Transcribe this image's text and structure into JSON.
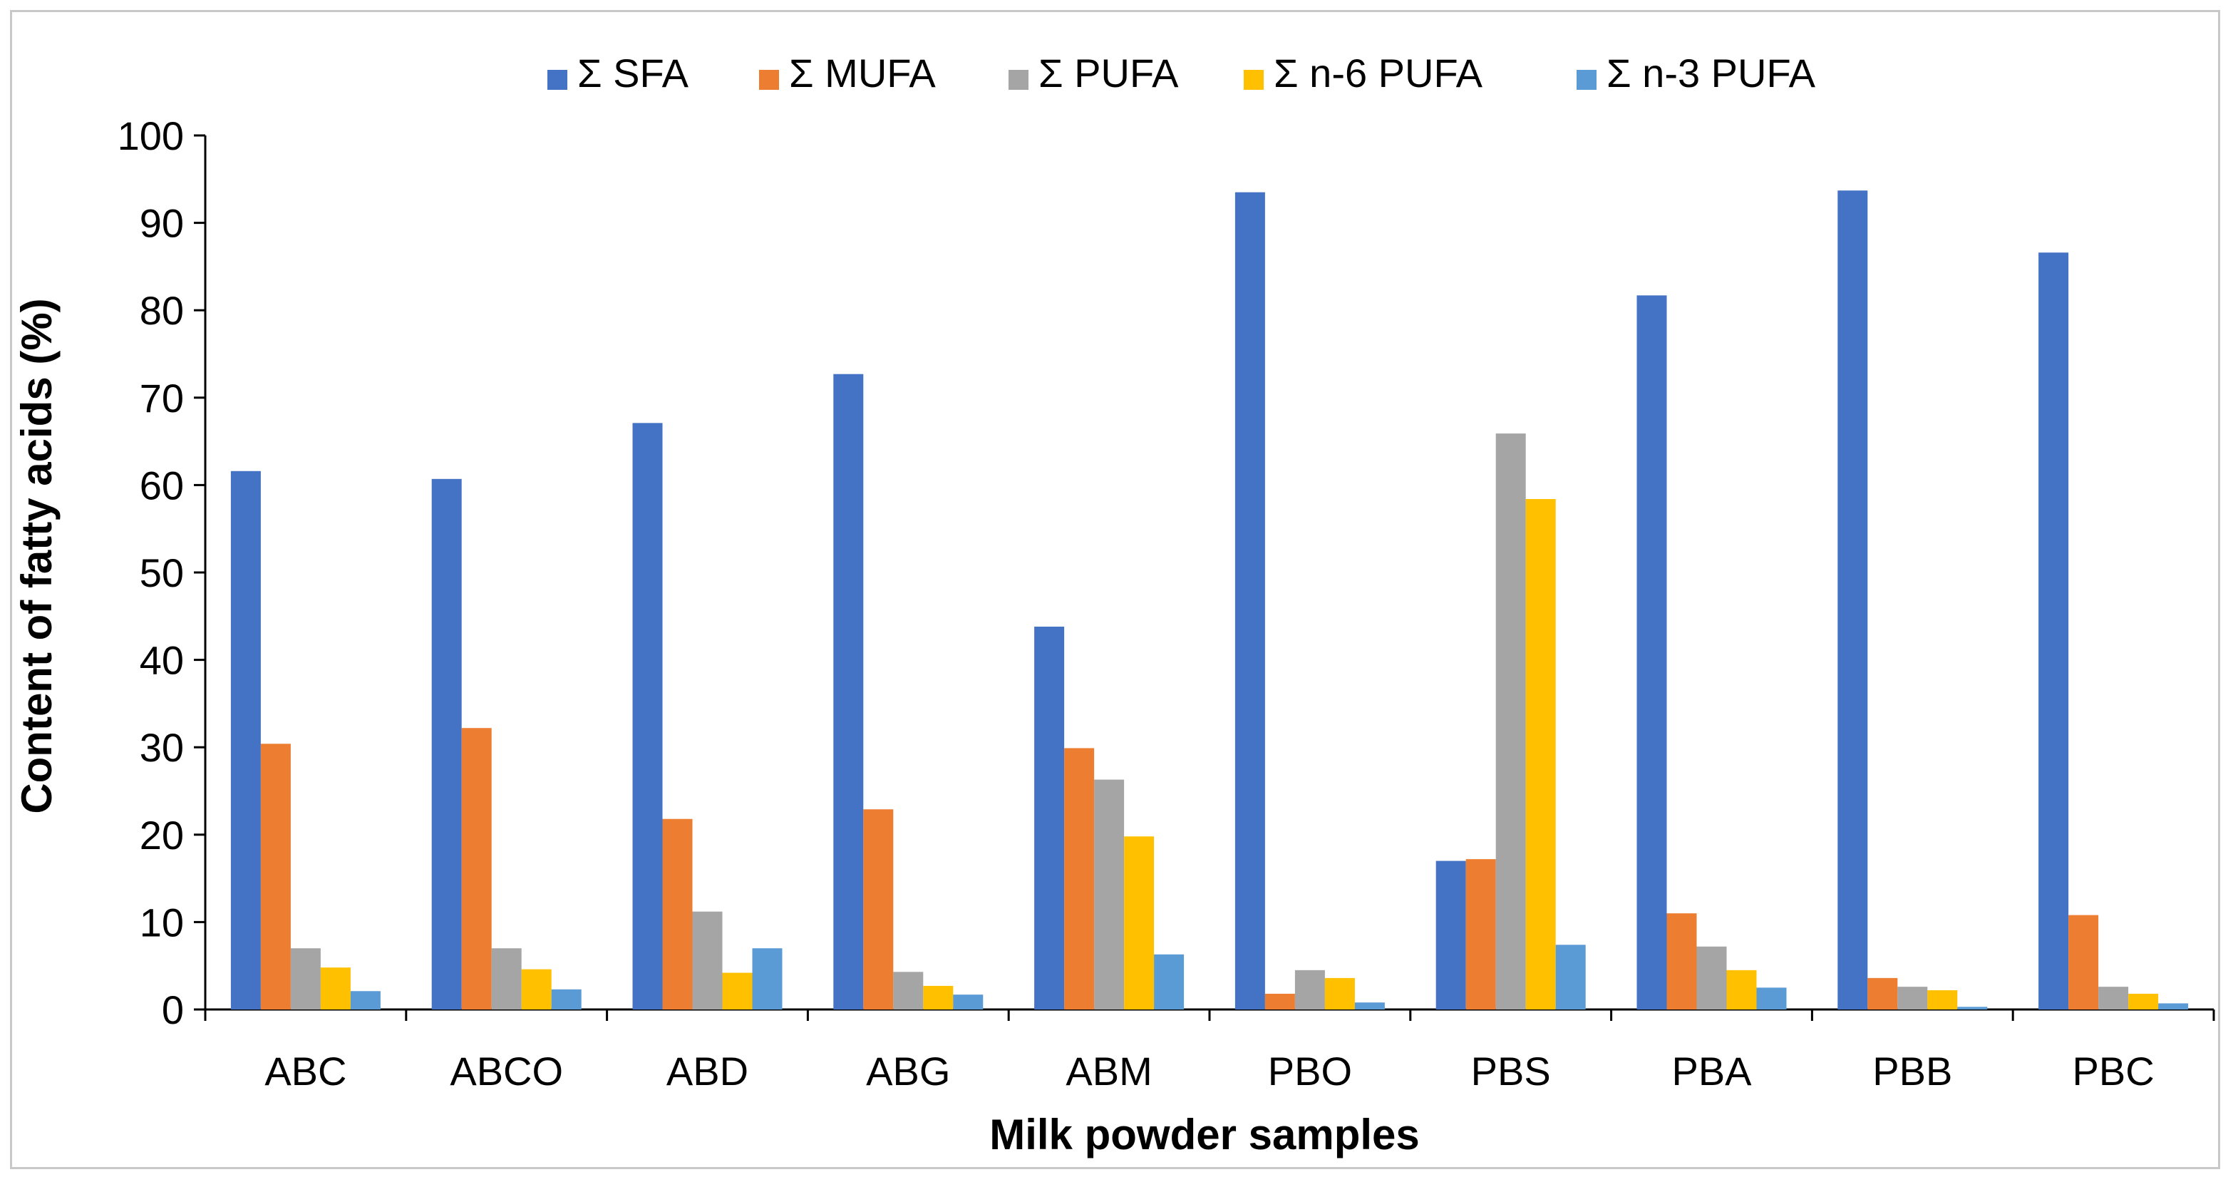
{
  "chart_data": {
    "type": "bar",
    "title": "",
    "xlabel": "Milk powder samples",
    "ylabel": "Content of fatty acids (%)",
    "ylim": [
      0,
      100
    ],
    "yticks": [
      "0",
      "10",
      "20",
      "30",
      "40",
      "50",
      "60",
      "70",
      "80",
      "90",
      "100"
    ],
    "grid": false,
    "legend_position": "top",
    "categories": [
      "ABC",
      "ABCO",
      "ABD",
      "ABG",
      "ABM",
      "PBO",
      "PBS",
      "PBA",
      "PBB",
      "PBC"
    ],
    "series": [
      {
        "name": "Σ SFA",
        "color": "#4472C4",
        "values": [
          61.6,
          60.7,
          67.1,
          72.7,
          43.8,
          93.5,
          17.0,
          81.7,
          93.7,
          86.6
        ]
      },
      {
        "name": "Σ MUFA",
        "color": "#ED7D31",
        "values": [
          30.4,
          32.2,
          21.8,
          22.9,
          29.9,
          1.8,
          17.2,
          11.0,
          3.6,
          10.8
        ]
      },
      {
        "name": "Σ PUFA",
        "color": "#A5A5A5",
        "values": [
          7.0,
          7.0,
          11.2,
          4.3,
          26.3,
          4.5,
          65.9,
          7.2,
          2.6,
          2.6
        ]
      },
      {
        "name": "Σ n-6 PUFA",
        "color": "#FFC000",
        "values": [
          4.8,
          4.6,
          4.2,
          2.7,
          19.8,
          3.6,
          58.4,
          4.5,
          2.2,
          1.8
        ]
      },
      {
        "name": "Σ n-3 PUFA",
        "color": "#5B9BD5",
        "values": [
          2.1,
          2.3,
          7.0,
          1.7,
          6.3,
          0.8,
          7.4,
          2.5,
          0.3,
          0.7
        ]
      }
    ]
  }
}
